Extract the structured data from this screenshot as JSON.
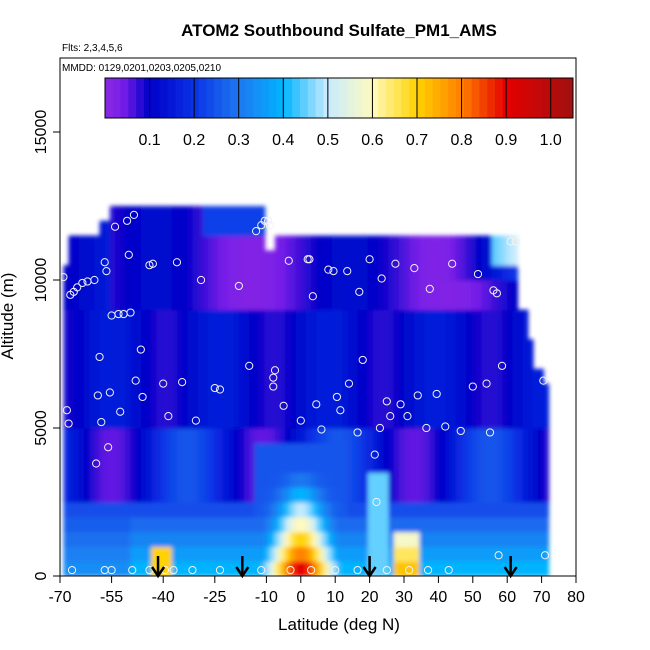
{
  "chart_data": {
    "type": "heatmap",
    "title": "ATOM2 Southbound Sulfate_PM1_AMS",
    "annotations": [
      "Flts: 2,3,4,5,6",
      "MMDD: 0129,0201,0203,0205,0210"
    ],
    "xlabel": "Latitude (deg N)",
    "ylabel": "Altitude (m)",
    "xlim": [
      -70,
      80
    ],
    "ylim": [
      0,
      17500
    ],
    "x_ticks": [
      -70,
      -55,
      -40,
      -25,
      -10,
      0,
      10,
      20,
      30,
      40,
      50,
      60,
      70,
      80
    ],
    "y_ticks": [
      0,
      5000,
      10000,
      15000
    ],
    "colorbar": {
      "range": [
        0,
        1.05
      ],
      "ticks": [
        0.1,
        0.2,
        0.3,
        0.4,
        0.5,
        0.6,
        0.7,
        0.8,
        0.9,
        1.0
      ],
      "colors": [
        "#7a1fe8",
        "#0000c8",
        "#1f6cf0",
        "#00b4ff",
        "#c8eeff",
        "#fffab4",
        "#ffd000",
        "#ff8000",
        "#e60000",
        "#a01010"
      ]
    },
    "sample_points": [
      {
        "lat": -69,
        "alt": 10100
      },
      {
        "lat": -68,
        "alt": 5600
      },
      {
        "lat": -67.5,
        "alt": 5150
      },
      {
        "lat": -67,
        "alt": 9500
      },
      {
        "lat": -66,
        "alt": 9600
      },
      {
        "lat": -65,
        "alt": 9750
      },
      {
        "lat": -63.5,
        "alt": 9900
      },
      {
        "lat": -62,
        "alt": 9950
      },
      {
        "lat": -60,
        "alt": 10000
      },
      {
        "lat": -59.5,
        "alt": 3800
      },
      {
        "lat": -59,
        "alt": 6100
      },
      {
        "lat": -58.5,
        "alt": 7400
      },
      {
        "lat": -58,
        "alt": 5200
      },
      {
        "lat": -57,
        "alt": 10600
      },
      {
        "lat": -56.5,
        "alt": 10300
      },
      {
        "lat": -56,
        "alt": 4350
      },
      {
        "lat": -55.5,
        "alt": 6200
      },
      {
        "lat": -55,
        "alt": 8800
      },
      {
        "lat": -54,
        "alt": 11800
      },
      {
        "lat": -53,
        "alt": 8850
      },
      {
        "lat": -52.5,
        "alt": 5550
      },
      {
        "lat": -51.5,
        "alt": 8850
      },
      {
        "lat": -50.5,
        "alt": 12000
      },
      {
        "lat": -50,
        "alt": 10850
      },
      {
        "lat": -49.5,
        "alt": 8900
      },
      {
        "lat": -48.5,
        "alt": 12200
      },
      {
        "lat": -48,
        "alt": 6600
      },
      {
        "lat": -46.5,
        "alt": 7650
      },
      {
        "lat": -46,
        "alt": 6050
      },
      {
        "lat": -44,
        "alt": 10500
      },
      {
        "lat": -43,
        "alt": 10550
      },
      {
        "lat": -40,
        "alt": 6500
      },
      {
        "lat": -38.5,
        "alt": 5400
      },
      {
        "lat": -36,
        "alt": 10600
      },
      {
        "lat": -34.5,
        "alt": 6550
      },
      {
        "lat": -30.5,
        "alt": 5250
      },
      {
        "lat": -29,
        "alt": 10000
      },
      {
        "lat": -25,
        "alt": 6350
      },
      {
        "lat": -23.5,
        "alt": 6300
      },
      {
        "lat": -18,
        "alt": 9800
      },
      {
        "lat": -15,
        "alt": 7100
      },
      {
        "lat": -13,
        "alt": 11650
      },
      {
        "lat": -11.5,
        "alt": 11850
      },
      {
        "lat": -10.5,
        "alt": 12000
      },
      {
        "lat": -9.5,
        "alt": 12000
      },
      {
        "lat": -9,
        "alt": 11850
      },
      {
        "lat": -8,
        "alt": 6700
      },
      {
        "lat": -7.5,
        "alt": 6950
      },
      {
        "lat": -8,
        "alt": 6400
      },
      {
        "lat": -5,
        "alt": 5750
      },
      {
        "lat": -3.5,
        "alt": 10650
      },
      {
        "lat": 0,
        "alt": 5250
      },
      {
        "lat": 2,
        "alt": 10700
      },
      {
        "lat": 2.5,
        "alt": 10700
      },
      {
        "lat": 3.5,
        "alt": 9450
      },
      {
        "lat": 4.5,
        "alt": 5800
      },
      {
        "lat": 6,
        "alt": 4950
      },
      {
        "lat": 8,
        "alt": 10350
      },
      {
        "lat": 9.5,
        "alt": 10300
      },
      {
        "lat": 10.5,
        "alt": 6050
      },
      {
        "lat": 11.5,
        "alt": 5600
      },
      {
        "lat": 13.5,
        "alt": 10300
      },
      {
        "lat": 14,
        "alt": 6500
      },
      {
        "lat": 16.5,
        "alt": 4850
      },
      {
        "lat": 17,
        "alt": 9600
      },
      {
        "lat": 18,
        "alt": 7300
      },
      {
        "lat": 20,
        "alt": 10700
      },
      {
        "lat": 21.5,
        "alt": 4100
      },
      {
        "lat": 22,
        "alt": 2500
      },
      {
        "lat": 23,
        "alt": 5000
      },
      {
        "lat": 23.5,
        "alt": 10050
      },
      {
        "lat": 25,
        "alt": 5900
      },
      {
        "lat": 26,
        "alt": 5400
      },
      {
        "lat": 27.5,
        "alt": 10550
      },
      {
        "lat": 29,
        "alt": 5800
      },
      {
        "lat": 31,
        "alt": 5400
      },
      {
        "lat": 33,
        "alt": 10400
      },
      {
        "lat": 34,
        "alt": 6100
      },
      {
        "lat": 36.5,
        "alt": 5000
      },
      {
        "lat": 37.5,
        "alt": 9700
      },
      {
        "lat": 39.5,
        "alt": 6150
      },
      {
        "lat": 42,
        "alt": 5050
      },
      {
        "lat": 44,
        "alt": 10550
      },
      {
        "lat": 46.5,
        "alt": 4900
      },
      {
        "lat": 50,
        "alt": 6400
      },
      {
        "lat": 51.5,
        "alt": 10200
      },
      {
        "lat": 54,
        "alt": 6500
      },
      {
        "lat": 55,
        "alt": 4850
      },
      {
        "lat": 56,
        "alt": 9650
      },
      {
        "lat": 57,
        "alt": 9550
      },
      {
        "lat": 57.5,
        "alt": 700
      },
      {
        "lat": 58.5,
        "alt": 7100
      },
      {
        "lat": 61,
        "alt": 11300
      },
      {
        "lat": 62.5,
        "alt": 11300
      },
      {
        "lat": 70.5,
        "alt": 6600
      },
      {
        "lat": 71,
        "alt": 700
      },
      {
        "lat": -66.5,
        "alt": 200
      },
      {
        "lat": -57,
        "alt": 200
      },
      {
        "lat": -55,
        "alt": 200
      },
      {
        "lat": -49,
        "alt": 200
      },
      {
        "lat": -44,
        "alt": 200
      },
      {
        "lat": -39.5,
        "alt": 200
      },
      {
        "lat": -37,
        "alt": 200
      },
      {
        "lat": -31.5,
        "alt": 200
      },
      {
        "lat": -23.5,
        "alt": 200
      },
      {
        "lat": -11.5,
        "alt": 200
      },
      {
        "lat": -3,
        "alt": 200
      },
      {
        "lat": 3,
        "alt": 200
      },
      {
        "lat": 10,
        "alt": 200
      },
      {
        "lat": 16.5,
        "alt": 200
      },
      {
        "lat": 25,
        "alt": 200
      },
      {
        "lat": 31.5,
        "alt": 200
      },
      {
        "lat": 37,
        "alt": 200
      },
      {
        "lat": 43,
        "alt": 200
      }
    ],
    "arrows_lat": [
      -41.5,
      -17,
      20,
      61
    ]
  }
}
